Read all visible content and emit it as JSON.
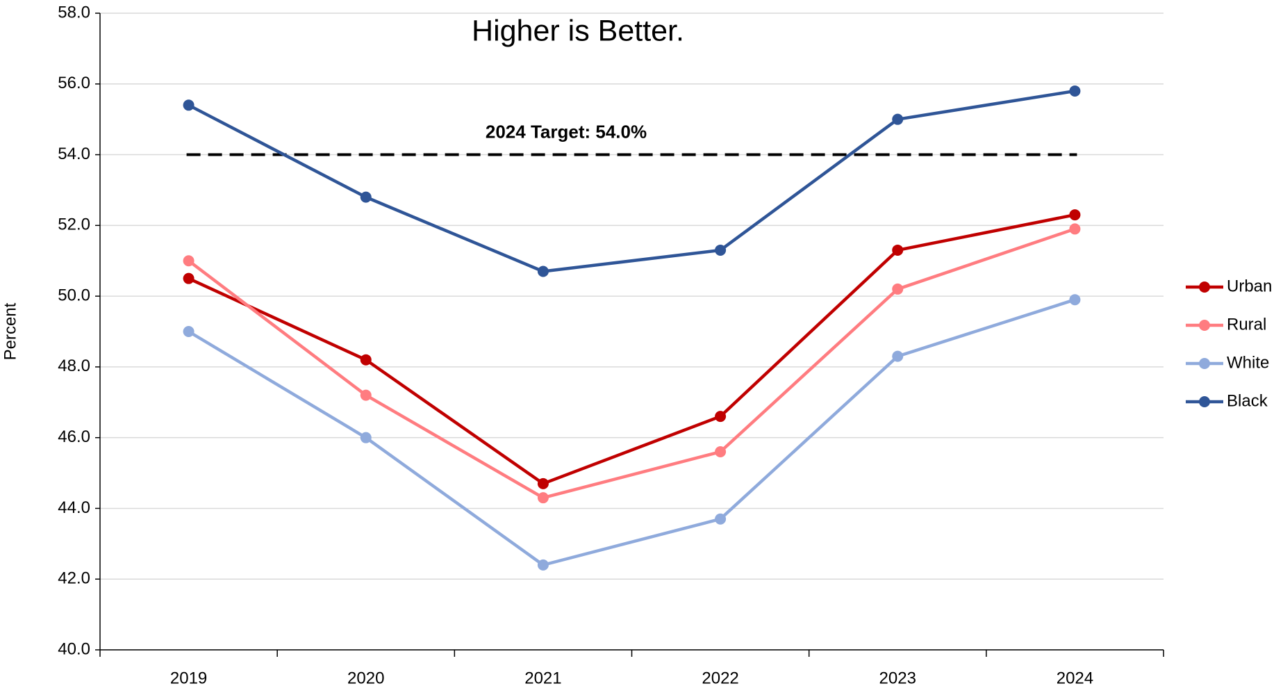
{
  "chart_data": {
    "type": "line",
    "title": "Higher is Better.",
    "y_label": "Percent",
    "categories": [
      "2019",
      "2020",
      "2021",
      "2022",
      "2023",
      "2024"
    ],
    "series": [
      {
        "name": "Urban",
        "color": "#c00000",
        "values": [
          50.5,
          48.2,
          44.7,
          46.6,
          51.3,
          52.3
        ]
      },
      {
        "name": "Rural",
        "color": "#ff7c80",
        "values": [
          51.0,
          47.2,
          44.3,
          45.6,
          50.2,
          51.9
        ]
      },
      {
        "name": "White",
        "color": "#8faadc",
        "values": [
          49.0,
          46.0,
          42.4,
          43.7,
          48.3,
          49.9
        ]
      },
      {
        "name": "Black",
        "color": "#2f5597",
        "values": [
          55.4,
          52.8,
          50.7,
          51.3,
          55.0,
          55.8
        ]
      }
    ],
    "target": {
      "value": 54,
      "label": "2024 Target: 54.0%"
    },
    "ylim": [
      40,
      58
    ],
    "yticks": [
      {
        "value": 40,
        "label": "40.0"
      },
      {
        "value": 42,
        "label": "42.0"
      },
      {
        "value": 44,
        "label": "44.0"
      },
      {
        "value": 46,
        "label": "46.0"
      },
      {
        "value": 48,
        "label": "48.0"
      },
      {
        "value": 50,
        "label": "50.0"
      },
      {
        "value": 52,
        "label": "52.0"
      },
      {
        "value": 54,
        "label": "54.0"
      },
      {
        "value": 56,
        "label": "56.0"
      },
      {
        "value": 58,
        "label": "58.0"
      }
    ],
    "grid": true,
    "legend": "right"
  }
}
